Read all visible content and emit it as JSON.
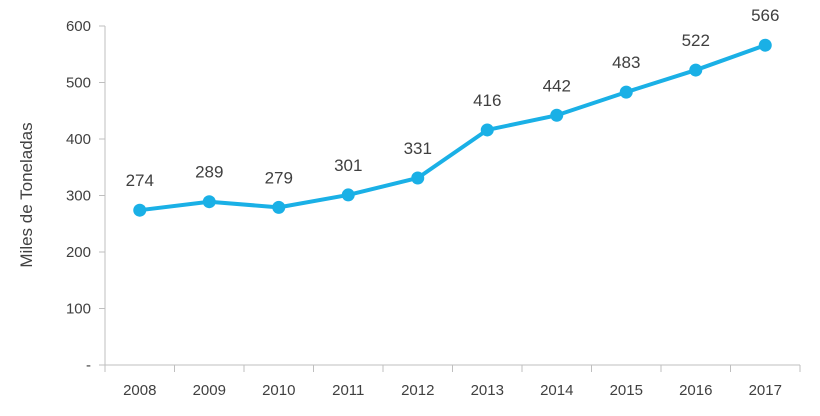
{
  "chart_data": {
    "type": "line",
    "title": "",
    "xlabel": "",
    "ylabel": "Miles de Toneladas",
    "x": [
      "2008",
      "2009",
      "2010",
      "2011",
      "2012",
      "2013",
      "2014",
      "2015",
      "2016",
      "2017"
    ],
    "series": [
      {
        "values": [
          274,
          289,
          279,
          301,
          331,
          416,
          442,
          483,
          522,
          566
        ],
        "color": "#1AB0E6"
      }
    ],
    "data_labels": [
      "274",
      "289",
      "279",
      "301",
      "331",
      "416",
      "442",
      "483",
      "522",
      "566"
    ],
    "ylim": [
      0,
      600
    ],
    "y_ticks": [
      0,
      100,
      200,
      300,
      400,
      500,
      600
    ],
    "y_tick_labels": [
      "-",
      "100",
      "200",
      "300",
      "400",
      "500",
      "600"
    ],
    "grid": false,
    "legend": "none",
    "axis_color": "#BFBFBF",
    "text_color": "#404040"
  }
}
